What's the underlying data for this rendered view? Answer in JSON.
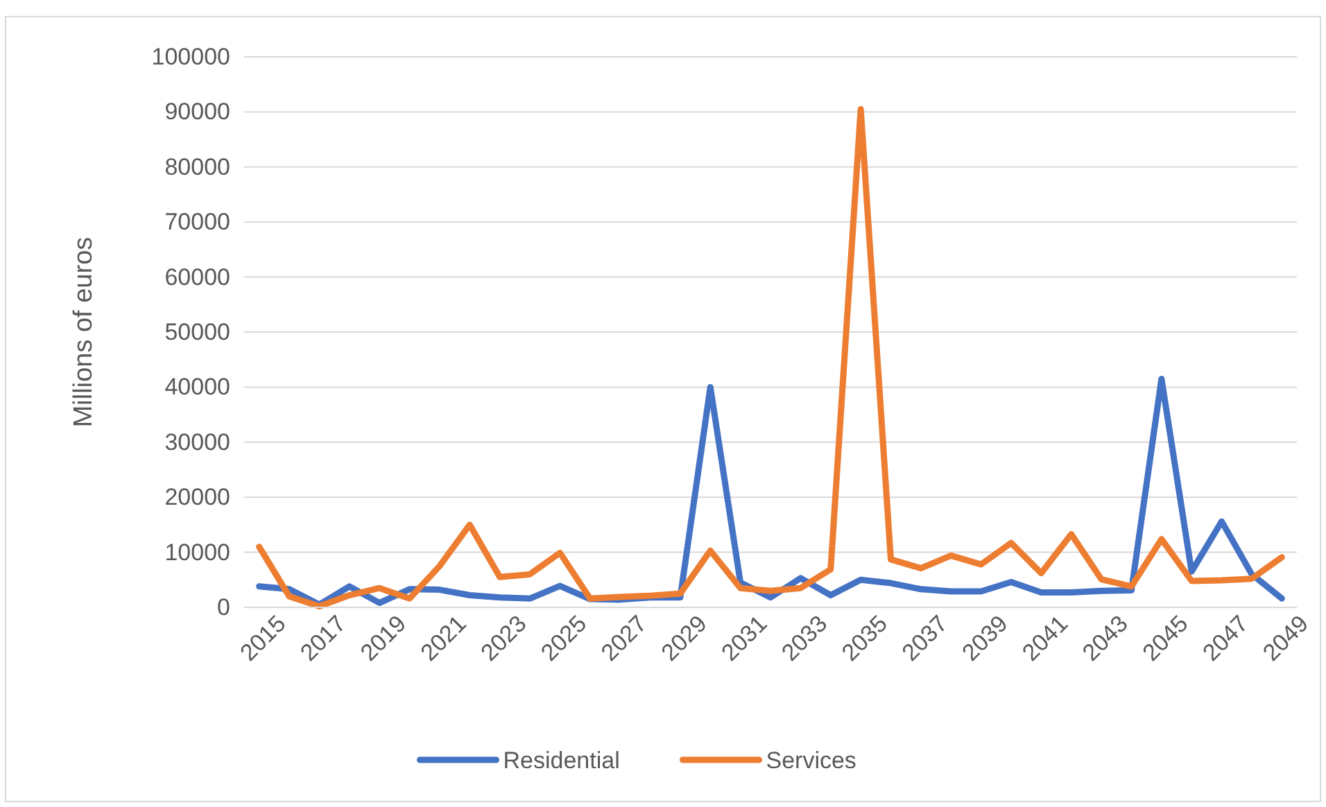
{
  "chart_data": {
    "type": "line",
    "ylabel": "Millions of euros",
    "x": [
      2015,
      2016,
      2017,
      2018,
      2019,
      2020,
      2021,
      2022,
      2023,
      2024,
      2025,
      2026,
      2027,
      2028,
      2029,
      2030,
      2031,
      2032,
      2033,
      2034,
      2035,
      2036,
      2037,
      2038,
      2039,
      2040,
      2041,
      2042,
      2043,
      2044,
      2045,
      2046,
      2047,
      2048,
      2049
    ],
    "series": [
      {
        "name": "Residential",
        "color": "#4472c4",
        "values": [
          3800,
          3300,
          500,
          3800,
          800,
          3300,
          3200,
          2200,
          1800,
          1600,
          3900,
          1500,
          1400,
          1800,
          1800,
          40000,
          4500,
          1800,
          5300,
          2200,
          5000,
          4400,
          3300,
          2900,
          2900,
          4600,
          2700,
          2700,
          3000,
          3100,
          41500,
          6500,
          15600,
          6000,
          1600
        ]
      },
      {
        "name": "Services",
        "color": "#ed7d31",
        "values": [
          11000,
          2000,
          200,
          2200,
          3500,
          1600,
          7500,
          15000,
          5500,
          6000,
          9900,
          1600,
          1900,
          2100,
          2500,
          10300,
          3500,
          3000,
          3500,
          6900,
          90500,
          8700,
          7100,
          9400,
          7800,
          11700,
          6200,
          13300,
          5100,
          3800,
          12400,
          4800,
          4900,
          5200,
          9100
        ]
      }
    ],
    "xlim": [
      2014.5,
      2049.5
    ],
    "xticks": [
      2015,
      2017,
      2019,
      2021,
      2023,
      2025,
      2027,
      2029,
      2031,
      2033,
      2035,
      2037,
      2039,
      2041,
      2043,
      2045,
      2047,
      2049
    ],
    "ylim": [
      0,
      100000
    ],
    "yticks": [
      0,
      10000,
      20000,
      30000,
      40000,
      50000,
      60000,
      70000,
      80000,
      90000,
      100000
    ],
    "grid": "y",
    "legend": "bottom",
    "marker": "none",
    "line_style": "solid"
  }
}
